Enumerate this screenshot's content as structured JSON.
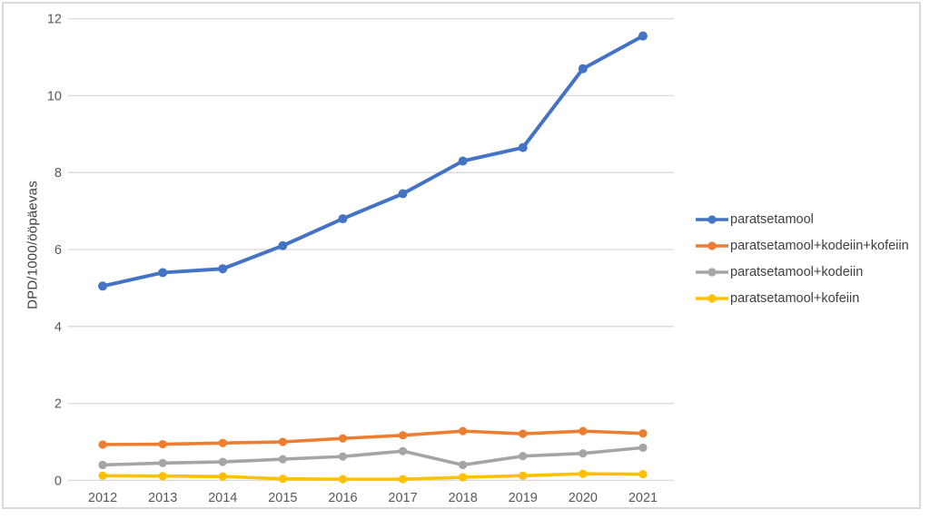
{
  "chart_data": {
    "type": "line",
    "title": "",
    "xlabel": "",
    "ylabel": "DPD/1000/ööpäevas",
    "categories": [
      "2012",
      "2013",
      "2014",
      "2015",
      "2016",
      "2017",
      "2018",
      "2019",
      "2020",
      "2021"
    ],
    "series": [
      {
        "name": "paratsetamool",
        "color": "#4472C4",
        "values": [
          5.05,
          5.4,
          5.5,
          6.1,
          6.8,
          7.45,
          8.3,
          8.65,
          10.7,
          11.55
        ]
      },
      {
        "name": "paratsetamool+kodeiin+kofeiin",
        "color": "#ED7D31",
        "values": [
          0.93,
          0.94,
          0.97,
          1.0,
          1.09,
          1.17,
          1.28,
          1.21,
          1.28,
          1.22
        ]
      },
      {
        "name": "paratsetamool+kodeiin",
        "color": "#A5A5A5",
        "values": [
          0.4,
          0.45,
          0.48,
          0.55,
          0.62,
          0.76,
          0.4,
          0.63,
          0.7,
          0.85
        ]
      },
      {
        "name": "paratsetamool+kofeiin",
        "color": "#FFC000",
        "values": [
          0.12,
          0.11,
          0.1,
          0.04,
          0.03,
          0.03,
          0.08,
          0.12,
          0.17,
          0.16
        ]
      }
    ],
    "ylim": [
      0,
      12
    ],
    "yticks": [
      0,
      2,
      4,
      6,
      8,
      10,
      12
    ],
    "grid": true,
    "legend_position": "right",
    "colors": {
      "gridline": "#D9D9D9",
      "tick_label": "#595959",
      "axis_title": "#404040",
      "legend_text": "#3F3F3F",
      "frame_border": "#D9D9D9",
      "background": "#FFFFFF"
    }
  }
}
